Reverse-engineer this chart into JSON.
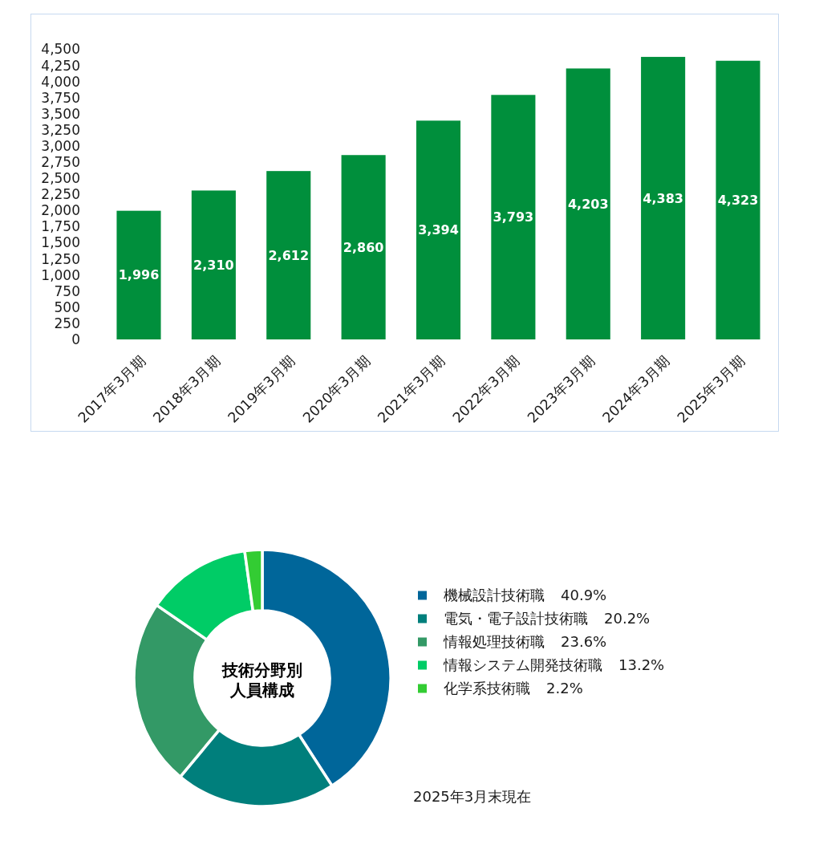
{
  "chart_data": [
    {
      "type": "bar",
      "categories": [
        "2017年3月期",
        "2018年3月期",
        "2019年3月期",
        "2020年3月期",
        "2021年3月期",
        "2022年3月期",
        "2023年3月期",
        "2024年3月期",
        "2025年3月期"
      ],
      "values": [
        1996,
        2310,
        2612,
        2860,
        3394,
        3793,
        4203,
        4383,
        4323
      ],
      "value_labels": [
        "1,996",
        "2,310",
        "2,612",
        "2,860",
        "3,394",
        "3,793",
        "4,203",
        "4,383",
        "4,323"
      ],
      "color": "#008f3c",
      "ylim": [
        0,
        4500
      ],
      "yticks": [
        0,
        250,
        500,
        750,
        {
          "value": 1000,
          "label": "1,000"
        },
        {
          "value": 1250,
          "label": "1,250"
        },
        {
          "value": 1500,
          "label": "1,500"
        },
        {
          "value": 1750,
          "label": "1,750"
        },
        {
          "value": 2000,
          "label": "2,000"
        },
        {
          "value": 2250,
          "label": "2,250"
        },
        {
          "value": 2500,
          "label": "2,500"
        },
        {
          "value": 2750,
          "label": "2,750"
        },
        {
          "value": 3000,
          "label": "3,000"
        },
        {
          "value": 3250,
          "label": "3,250"
        },
        {
          "value": 3500,
          "label": "3,500"
        },
        {
          "value": 3750,
          "label": "3,750"
        },
        {
          "value": 4000,
          "label": "4,000"
        },
        {
          "value": 4250,
          "label": "4,250"
        },
        {
          "value": 4500,
          "label": "4,500"
        }
      ]
    },
    {
      "type": "donut",
      "title": "技術分野別人員構成",
      "categories": [
        "機械設計技術職",
        "電気・電子設計技術職",
        "情報処理技術職",
        "情報システム開発技術職",
        "化学系技術職"
      ],
      "values": [
        40.9,
        20.2,
        23.6,
        13.2,
        2.2
      ],
      "value_labels": [
        "40.9%",
        "20.2%",
        "23.6%",
        "13.2%",
        "2.2%"
      ],
      "colors": [
        "#00669a",
        "#007f7c",
        "#339966",
        "#00cc66",
        "#33cc33"
      ],
      "legend": "right",
      "annotations": [
        "2025年3月末現在"
      ]
    }
  ]
}
